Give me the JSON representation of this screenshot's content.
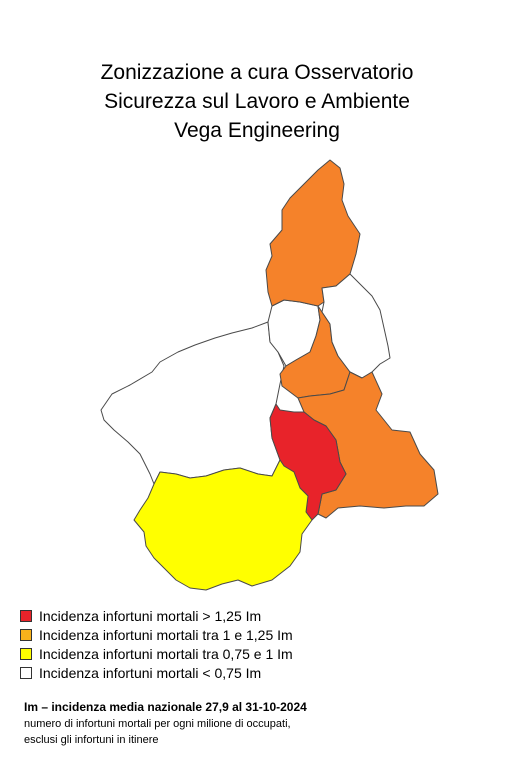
{
  "title": {
    "line1": "Zonizzazione a cura Osservatorio",
    "line2": "Sicurezza sul Lavoro e Ambiente",
    "line3": "Vega Engineering"
  },
  "colors": {
    "red": "#e8232a",
    "orange": "#f5822a",
    "gold": "#f8b21b",
    "yellow": "#ffff00",
    "white": "#ffffff"
  },
  "legend": [
    {
      "label": "Incidenza infortuni mortali > 1,25 Im",
      "color": "#e8232a"
    },
    {
      "label": "Incidenza infortuni mortali tra 1 e 1,25 Im",
      "color": "#f8b21b"
    },
    {
      "label": "Incidenza infortuni mortali tra 0,75 e 1 Im",
      "color": "#ffff00"
    },
    {
      "label": "Incidenza infortuni mortali < 0,75 Im",
      "color": "#ffffff"
    }
  ],
  "notes": {
    "heading": "Im – incidenza media nazionale 27,9 al 31-10-2024",
    "line1": "numero di infortuni mortali per ogni milione di occupati,",
    "line2": "esclusi gli infortuni in itinere"
  }
}
